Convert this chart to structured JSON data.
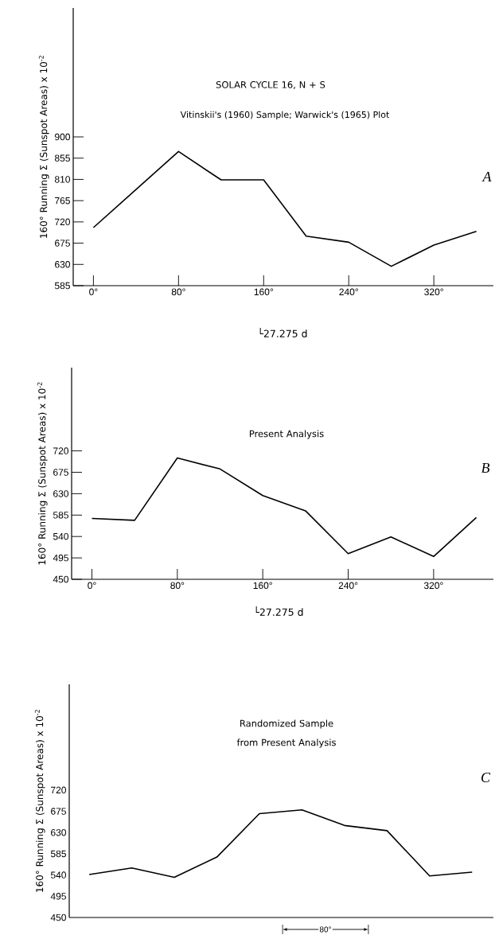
{
  "chart_data": [
    {
      "type": "line",
      "title": "SOLAR CYCLE 16, N + S",
      "subtitle": "Vitinskii's (1960) Sample; Warwick's (1965) Plot",
      "xlabel": "└27.275 d",
      "ylabel": "160° Running Σ (Sunspot Areas) x 10$^{-2}$",
      "annotations": [
        "A"
      ],
      "color": "#000000",
      "x": [
        0,
        80,
        120,
        160,
        200,
        240,
        280,
        320,
        360
      ],
      "values": [
        708,
        869,
        809,
        809,
        690,
        677,
        626,
        671,
        700
      ],
      "xlim": [
        -19,
        376
      ],
      "ylim": [
        585,
        1173
      ],
      "xticks": [
        {
          "value": 0,
          "label": "0°"
        },
        {
          "value": 80,
          "label": "80°"
        },
        {
          "value": 160,
          "label": "160°"
        },
        {
          "value": 240,
          "label": "240°"
        },
        {
          "value": 320,
          "label": "320°"
        }
      ],
      "yticks": [
        585,
        630,
        675,
        720,
        765,
        810,
        855,
        900
      ]
    },
    {
      "type": "line",
      "title": "Present Analysis",
      "xlabel": "└27.275 d",
      "ylabel": "160° Running Σ (Sunspot Areas) x 10$^{-2}$",
      "annotations": [
        "B"
      ],
      "color": "#000000",
      "x": [
        0,
        40,
        80,
        120,
        160,
        200,
        240,
        280,
        320,
        360
      ],
      "values": [
        578,
        574,
        705,
        682,
        626,
        594,
        504,
        539,
        498,
        580
      ],
      "xlim": [
        -19,
        376
      ],
      "ylim": [
        450,
        895
      ],
      "xticks": [
        {
          "value": 0,
          "label": "0°"
        },
        {
          "value": 80,
          "label": "80°"
        },
        {
          "value": 160,
          "label": "160°"
        },
        {
          "value": 240,
          "label": "240°"
        },
        {
          "value": 320,
          "label": "320°"
        }
      ],
      "yticks": [
        450,
        495,
        540,
        585,
        630,
        675,
        720
      ]
    },
    {
      "type": "line",
      "title": "Randomized Sample from Present Analysis",
      "ylabel": "160° Running Σ (Sunspot Areas) x 10$^{-2}$",
      "annotations": [
        "C",
        "80°"
      ],
      "color": "#000000",
      "categories": [
        null,
        null,
        null,
        null,
        null,
        null,
        null,
        null,
        null,
        null
      ],
      "values": [
        541,
        555,
        535,
        578,
        670,
        678,
        645,
        634,
        538,
        546
      ],
      "ylim": [
        450,
        944
      ],
      "tick_labels": "y",
      "yticks": [
        450,
        495,
        540,
        585,
        630,
        675,
        720
      ]
    }
  ]
}
